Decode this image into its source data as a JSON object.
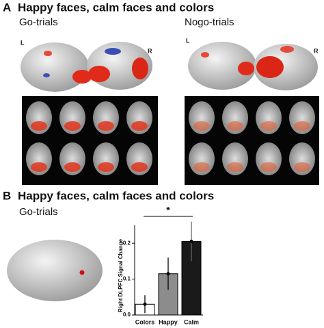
{
  "panel_a": {
    "label": "A",
    "title": "Happy faces, calm faces and colors",
    "left_heading": "Go-trials",
    "right_heading": "Nogo-trials",
    "hemispheres": [
      "L",
      "R",
      "L",
      "R"
    ]
  },
  "panel_b": {
    "label": "B",
    "title": "Happy faces, calm faces and colors",
    "heading": "Go-trials"
  },
  "chart_data": {
    "type": "bar",
    "y_label": "Right DLPFC Signal Change",
    "categories": [
      "Colors",
      "Happy",
      "Calm"
    ],
    "values": [
      0.03,
      0.115,
      0.205
    ],
    "errors": [
      0.025,
      0.045,
      0.055
    ],
    "colors": [
      "#ffffff",
      "#8c8c8c",
      "#1a1a1a"
    ],
    "ylim": [
      0,
      0.25
    ],
    "yticks": [
      {
        "value": 0,
        "label": "0.0"
      },
      0.1,
      0.2
    ],
    "annotation": "*"
  }
}
